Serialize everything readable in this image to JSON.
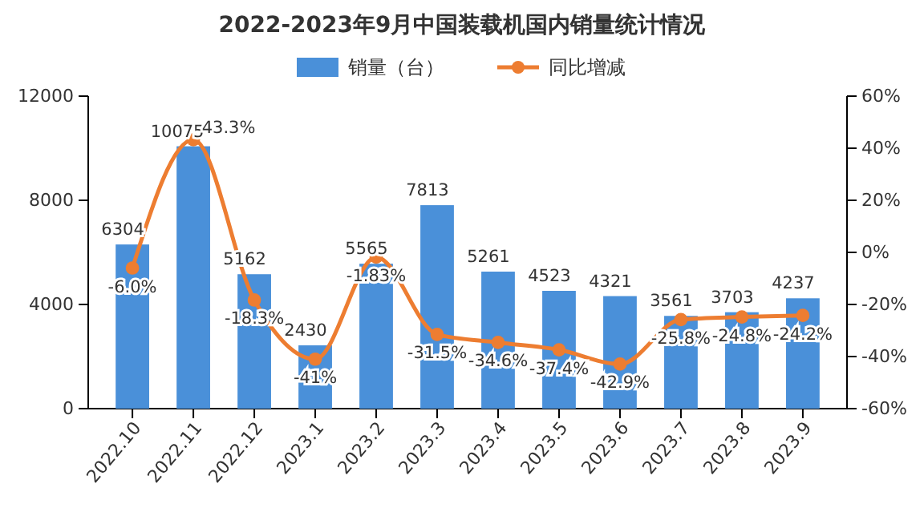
{
  "chart_data": {
    "type": "bar",
    "title": "2022-2023年9月中国装载机国内销量统计情况",
    "categories": [
      "2022.10",
      "2022.11",
      "2022.12",
      "2023.1",
      "2023.2",
      "2023.3",
      "2023.4",
      "2023.5",
      "2023.6",
      "2023.7",
      "2023.8",
      "2023.9"
    ],
    "series": [
      {
        "name": "销量（台）",
        "color": "#4a90d9",
        "values": [
          6304,
          10075,
          5162,
          2430,
          5565,
          7813,
          5261,
          4523,
          4321,
          3561,
          3703,
          4237
        ],
        "value_labels": [
          "6304",
          "10075",
          "5162",
          "2430",
          "5565",
          "7813",
          "5261",
          "4523",
          "4321",
          "3561",
          "3703",
          "4237"
        ]
      },
      {
        "name": "同比增减",
        "type": "line",
        "axis": "y2",
        "color": "#ed7d31",
        "values": [
          -6.0,
          43.3,
          -18.3,
          -41,
          -1.83,
          -31.5,
          -34.6,
          -37.4,
          -42.9,
          -25.8,
          -24.8,
          -24.2
        ],
        "value_labels": [
          "-6.0%",
          "43.3%",
          "-18.3%",
          "-41%",
          "-1.83%",
          "-31.5%",
          "-34.6%",
          "-37.4%",
          "-42.9%",
          "-25.8%",
          "-24.8%",
          "-24.2%"
        ]
      }
    ],
    "ylim": [
      0,
      12000
    ],
    "yticks": [
      0,
      4000,
      8000,
      12000
    ],
    "y2lim": [
      -60,
      60
    ],
    "y2ticks": [
      {
        "value": -60,
        "label": "-60%"
      },
      {
        "value": -40,
        "label": "-40%"
      },
      {
        "value": -20,
        "label": "-20%"
      },
      {
        "value": 0,
        "label": "0%"
      },
      {
        "value": 20,
        "label": "20%"
      },
      {
        "value": 40,
        "label": "40%"
      },
      {
        "value": 60,
        "label": "60%"
      }
    ],
    "legend": "top",
    "marker": "circle",
    "line_style": "solid"
  }
}
